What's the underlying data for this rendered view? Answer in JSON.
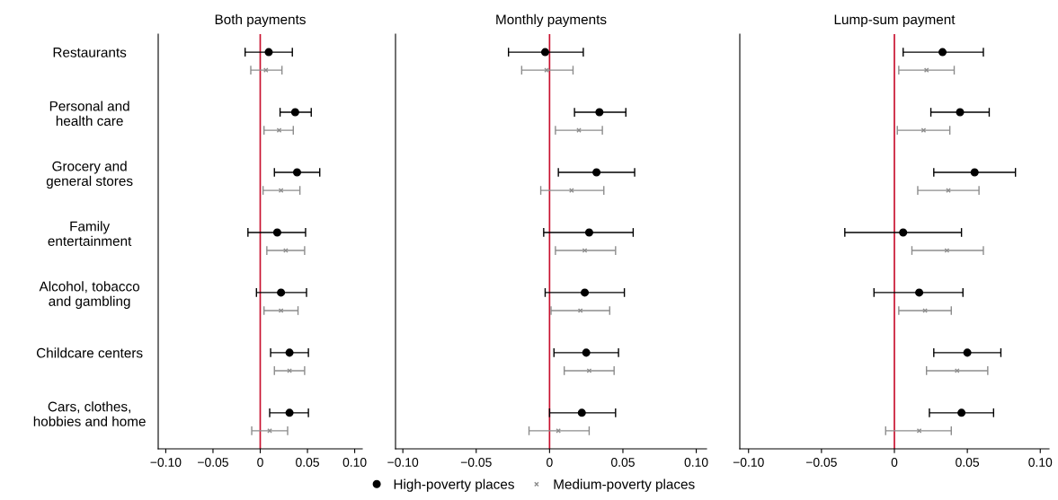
{
  "chart_data": [
    {
      "type": "scatter",
      "orientation": "horizontal",
      "title": "Both payments",
      "categories": [
        "Restaurants",
        "Personal and\nhealth care",
        "Grocery and\ngeneral stores",
        "Family\nentertainment",
        "Alcohol, tobacco\nand gambling",
        "Childcare centers",
        "Cars, clothes,\nhobbies and home"
      ],
      "xlim": [
        -0.108,
        0.108
      ],
      "xticks": [
        {
          "value": -0.1,
          "label": "−0.10"
        },
        {
          "value": -0.05,
          "label": "−0.05"
        },
        {
          "value": 0,
          "label": "0"
        },
        {
          "value": 0.05,
          "label": "0.05"
        },
        {
          "value": 0.1,
          "label": "0.10"
        }
      ],
      "ref_lines": [
        {
          "axis": "x",
          "value": 0,
          "color": "#c8102e"
        }
      ],
      "series": [
        {
          "color": "#000000",
          "marker": "circle",
          "values": [
            0.009,
            0.037,
            0.039,
            0.018,
            0.022,
            0.031,
            0.031
          ],
          "errors": [
            [
              -0.016,
              0.034
            ],
            [
              0.021,
              0.054
            ],
            [
              0.015,
              0.063
            ],
            [
              -0.013,
              0.048
            ],
            [
              -0.004,
              0.049
            ],
            [
              0.011,
              0.051
            ],
            [
              0.01,
              0.051
            ]
          ]
        },
        {
          "color": "#8c8c8c",
          "marker": "cross",
          "values": [
            0.006,
            0.02,
            0.022,
            0.027,
            0.022,
            0.031,
            0.01
          ],
          "errors": [
            [
              -0.01,
              0.023
            ],
            [
              0.004,
              0.035
            ],
            [
              0.003,
              0.042
            ],
            [
              0.007,
              0.047
            ],
            [
              0.004,
              0.04
            ],
            [
              0.015,
              0.047
            ],
            [
              -0.009,
              0.029
            ]
          ]
        }
      ]
    },
    {
      "type": "scatter",
      "orientation": "horizontal",
      "title": "Monthly payments",
      "tick_labels": "x",
      "categories": [
        null,
        null,
        null,
        null,
        null,
        null,
        null
      ],
      "xlim": [
        -0.105,
        0.107
      ],
      "xticks": [
        {
          "value": -0.1,
          "label": "−0.10"
        },
        {
          "value": -0.05,
          "label": "−0.05"
        },
        {
          "value": 0,
          "label": "0"
        },
        {
          "value": 0.05,
          "label": "0.05"
        },
        {
          "value": 0.1,
          "label": "0.10"
        }
      ],
      "ref_lines": [
        {
          "axis": "x",
          "value": 0,
          "color": "#c8102e"
        }
      ],
      "legend": "bottom",
      "series": [
        {
          "name": "High-poverty places",
          "color": "#000000",
          "marker": "circle",
          "values": [
            -0.003,
            0.034,
            0.032,
            0.027,
            0.024,
            0.025,
            0.022
          ],
          "errors": [
            [
              -0.028,
              0.023
            ],
            [
              0.017,
              0.052
            ],
            [
              0.006,
              0.058
            ],
            [
              -0.004,
              0.057
            ],
            [
              -0.003,
              0.051
            ],
            [
              0.003,
              0.047
            ],
            [
              0.0,
              0.045
            ]
          ]
        },
        {
          "name": "Medium-poverty places",
          "color": "#8c8c8c",
          "marker": "cross",
          "values": [
            -0.002,
            0.02,
            0.015,
            0.024,
            0.021,
            0.027,
            0.006
          ],
          "errors": [
            [
              -0.019,
              0.016
            ],
            [
              0.004,
              0.036
            ],
            [
              -0.006,
              0.037
            ],
            [
              0.004,
              0.045
            ],
            [
              0.001,
              0.041
            ],
            [
              0.01,
              0.044
            ],
            [
              -0.014,
              0.027
            ]
          ]
        }
      ]
    },
    {
      "type": "scatter",
      "orientation": "horizontal",
      "title": "Lump-sum payment",
      "tick_labels": "x",
      "categories": [
        null,
        null,
        null,
        null,
        null,
        null,
        null
      ],
      "xlim": [
        -0.106,
        0.106
      ],
      "xticks": [
        {
          "value": -0.1,
          "label": "−0.10"
        },
        {
          "value": -0.05,
          "label": "−0.05"
        },
        {
          "value": 0,
          "label": "0"
        },
        {
          "value": 0.05,
          "label": "0.05"
        },
        {
          "value": 0.1,
          "label": "0.10"
        }
      ],
      "ref_lines": [
        {
          "axis": "x",
          "value": 0,
          "color": "#c8102e"
        }
      ],
      "series": [
        {
          "color": "#000000",
          "marker": "circle",
          "values": [
            0.033,
            0.045,
            0.055,
            0.006,
            0.017,
            0.05,
            0.046
          ],
          "errors": [
            [
              0.006,
              0.061
            ],
            [
              0.025,
              0.065
            ],
            [
              0.027,
              0.083
            ],
            [
              -0.034,
              0.046
            ],
            [
              -0.014,
              0.047
            ],
            [
              0.027,
              0.073
            ],
            [
              0.024,
              0.068
            ]
          ]
        },
        {
          "color": "#8c8c8c",
          "marker": "cross",
          "values": [
            0.022,
            0.02,
            0.037,
            0.036,
            0.021,
            0.043,
            0.017
          ],
          "errors": [
            [
              0.003,
              0.041
            ],
            [
              0.002,
              0.038
            ],
            [
              0.016,
              0.058
            ],
            [
              0.012,
              0.061
            ],
            [
              0.003,
              0.039
            ],
            [
              0.022,
              0.064
            ],
            [
              -0.006,
              0.039
            ]
          ]
        }
      ]
    }
  ]
}
